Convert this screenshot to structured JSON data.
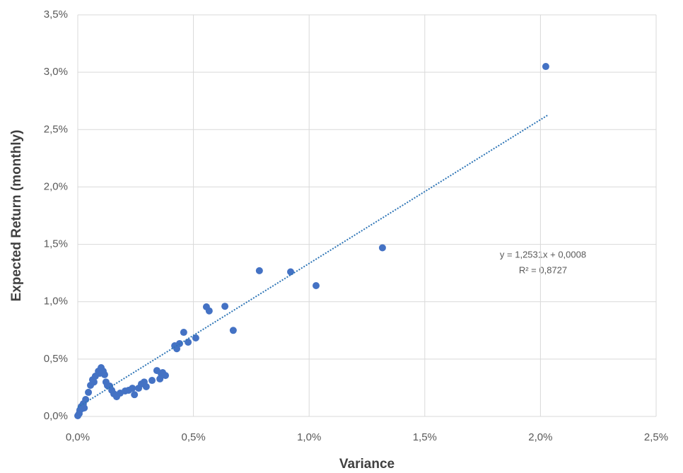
{
  "chart_data": {
    "type": "scatter",
    "x_label": "Variance",
    "y_label": "Expected Return (monthly)",
    "x": [
      2.023,
      1.317,
      1.03,
      0.92,
      0.785,
      0.636,
      0.672,
      0.556,
      0.568,
      0.51,
      0.458,
      0.477,
      0.44,
      0.419,
      0.428,
      0.379,
      0.361,
      0.342,
      0.355,
      0.367,
      0.321,
      0.296,
      0.287,
      0.275,
      0.263,
      0.245,
      0.236,
      0.22,
      0.205,
      0.183,
      0.168,
      0.156,
      0.147,
      0.138,
      0.128,
      0.122,
      0.116,
      0.11,
      0.101,
      0.095,
      0.089,
      0.076,
      0.07,
      0.064,
      0.055,
      0.046,
      0.034,
      0.028,
      0.024,
      0.018,
      0.015,
      0.009,
      0.006,
      0.0
    ],
    "series": [
      {
        "name": "Expected Return",
        "color": "#4472c4",
        "values": [
          3.05,
          1.47,
          1.14,
          1.26,
          1.27,
          0.96,
          0.75,
          0.955,
          0.92,
          0.684,
          0.733,
          0.647,
          0.635,
          0.616,
          0.59,
          0.357,
          0.37,
          0.4,
          0.327,
          0.382,
          0.314,
          0.259,
          0.3,
          0.283,
          0.246,
          0.19,
          0.246,
          0.228,
          0.222,
          0.203,
          0.172,
          0.197,
          0.228,
          0.265,
          0.27,
          0.3,
          0.364,
          0.394,
          0.425,
          0.376,
          0.394,
          0.351,
          0.3,
          0.32,
          0.271,
          0.21,
          0.148,
          0.074,
          0.111,
          0.068,
          0.086,
          0.055,
          0.025,
          0.006
        ]
      }
    ],
    "trendline": {
      "color": "#2e75b6",
      "x": [
        0,
        2.03
      ],
      "y": [
        0.08,
        2.624
      ],
      "equation": "y = 1,2531x + 0,0008",
      "r_squared": "R² = 0,8727"
    },
    "xlim": [
      0,
      2.5
    ],
    "ylim": [
      0,
      3.5
    ],
    "xticks": [
      {
        "value": 0,
        "label": "0,0%"
      },
      {
        "value": 0.5,
        "label": "0,5%"
      },
      {
        "value": 1,
        "label": "1,0%"
      },
      {
        "value": 1.5,
        "label": "1,5%"
      },
      {
        "value": 2,
        "label": "2,0%"
      },
      {
        "value": 2.5,
        "label": "2,5%"
      }
    ],
    "yticks": [
      {
        "value": 0,
        "label": "0,0%"
      },
      {
        "value": 0.5,
        "label": "0,5%"
      },
      {
        "value": 1,
        "label": "1,0%"
      },
      {
        "value": 1.5,
        "label": "1,5%"
      },
      {
        "value": 2,
        "label": "2,0%"
      },
      {
        "value": 2.5,
        "label": "2,5%"
      },
      {
        "value": 3,
        "label": "3,0%"
      },
      {
        "value": 3.5,
        "label": "3,5%"
      }
    ],
    "grid": true
  }
}
